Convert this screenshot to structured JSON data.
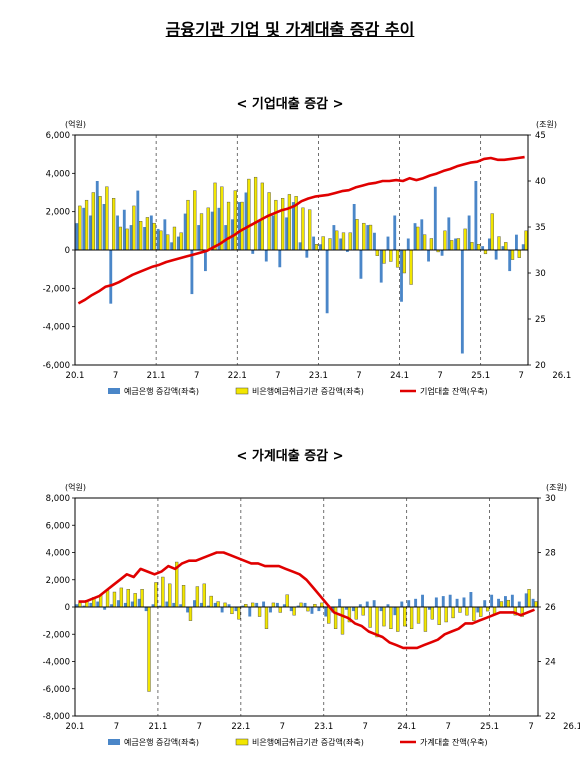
{
  "page_title": "금융기관 기업 및 가계대출 증감 추이",
  "chart_data": [
    {
      "type": "bar",
      "title": "< 기업대출 증감 >",
      "left_unit": "(억원)",
      "right_unit": "(조원)",
      "left_ylim": [
        -6000,
        6000
      ],
      "left_ticks": [
        "-6,000",
        "-4,000",
        "-2,000",
        "0",
        "2,000",
        "4,000",
        "6,000"
      ],
      "right_ylim": [
        20,
        45
      ],
      "right_ticks": [
        "20",
        "25",
        "30",
        "35",
        "40",
        "45"
      ],
      "x_tick_labels": [
        "20.1",
        "7",
        "21.1",
        "7",
        "22.1",
        "7",
        "23.1",
        "7",
        "24.1",
        "7",
        "25.1",
        "7",
        "26.1"
      ],
      "legend": [
        "예금은행 증감액(좌축)",
        "비은행예금취급기관 증감액(좌축)",
        "기업대출 잔액(우축)"
      ],
      "colors": {
        "bank": "#4a86c8",
        "nonbank": "#f2e600",
        "nonbank_edge": "#444444",
        "line": "#e00000"
      },
      "series": [
        {
          "name": "예금은행 증감액(좌축)",
          "values": [
            1400,
            2200,
            1800,
            3600,
            2400,
            -2800,
            1800,
            2100,
            1300,
            3100,
            1200,
            1800,
            1100,
            1600,
            400,
            700,
            1900,
            -2300,
            1300,
            -1100,
            2000,
            2200,
            1300,
            1600,
            2500,
            3000,
            -200,
            1500,
            -600,
            1800,
            -900,
            1700,
            2500,
            400,
            -400,
            700,
            300,
            -3300,
            1300,
            600,
            -100,
            2400,
            -1500,
            1300,
            900,
            -1700,
            700,
            1800,
            -2700,
            600,
            1400,
            1600,
            -600,
            3300,
            -300,
            1700,
            600,
            -5400,
            1800,
            3600,
            200,
            600,
            -500,
            200,
            -1100,
            800,
            300
          ]
        },
        {
          "name": "비은행예금취급기관 증감액(좌축)",
          "values": [
            2300,
            2600,
            3000,
            2800,
            3300,
            2700,
            1200,
            1100,
            2300,
            1500,
            1700,
            1400,
            1000,
            800,
            1200,
            900,
            2600,
            3100,
            1900,
            2200,
            3500,
            3300,
            2500,
            3100,
            2500,
            3700,
            3800,
            3500,
            3000,
            2600,
            2700,
            2900,
            2800,
            2200,
            2100,
            300,
            700,
            600,
            1000,
            900,
            900,
            1600,
            1400,
            1300,
            -300,
            -700,
            -600,
            -900,
            -1200,
            -1800,
            1200,
            800,
            600,
            -100,
            1000,
            500,
            600,
            1100,
            400,
            300,
            -200,
            1900,
            700,
            400,
            -500,
            -400,
            1000
          ]
        },
        {
          "name": "기업대출 잔액(우축)",
          "values": [
            26.7,
            27.1,
            27.6,
            28.0,
            28.5,
            28.7,
            29.0,
            29.4,
            29.8,
            30.1,
            30.4,
            30.7,
            30.9,
            31.2,
            31.4,
            31.6,
            31.8,
            32.0,
            32.2,
            32.4,
            32.8,
            33.2,
            33.7,
            34.1,
            34.6,
            35.0,
            35.4,
            35.8,
            36.2,
            36.5,
            36.8,
            37.0,
            37.3,
            37.8,
            38.1,
            38.3,
            38.4,
            38.5,
            38.7,
            38.9,
            39.0,
            39.3,
            39.5,
            39.7,
            39.8,
            40.0,
            40.0,
            40.1,
            40.0,
            40.3,
            40.1,
            40.3,
            40.6,
            40.8,
            41.1,
            41.3,
            41.6,
            41.8,
            42.0,
            42.1,
            42.4,
            42.5,
            42.3,
            42.3,
            42.4,
            42.5,
            42.6
          ]
        }
      ]
    },
    {
      "type": "bar",
      "title": "< 가계대출 증감 >",
      "left_unit": "(억원)",
      "right_unit": "(조원)",
      "left_ylim": [
        -8000,
        8000
      ],
      "left_ticks": [
        "-8,000",
        "-6,000",
        "-4,000",
        "-2,000",
        "0",
        "2,000",
        "4,000",
        "6,000",
        "8,000"
      ],
      "right_ylim": [
        22,
        30
      ],
      "right_ticks": [
        "22",
        "24",
        "26",
        "28",
        "30"
      ],
      "x_tick_labels": [
        "20.1",
        "7",
        "21.1",
        "7",
        "22.1",
        "7",
        "23.1",
        "7",
        "24.1",
        "7",
        "25.1",
        "7",
        "26.1"
      ],
      "legend": [
        "예금은행 증감액(좌축)",
        "비은행예금취급기관 증감액(좌축)",
        "가계대출 잔액(우축)"
      ],
      "colors": {
        "bank": "#4a86c8",
        "nonbank": "#f2e600",
        "nonbank_edge": "#444444",
        "line": "#e00000"
      },
      "series": [
        {
          "name": "예금은행 증감액(좌축)",
          "values": [
            200,
            100,
            300,
            400,
            -200,
            200,
            500,
            300,
            400,
            600,
            -300,
            200,
            100,
            400,
            300,
            200,
            -400,
            500,
            300,
            100,
            300,
            -400,
            200,
            -300,
            100,
            -700,
            300,
            400,
            -400,
            300,
            200,
            -300,
            100,
            300,
            -500,
            -300,
            -700,
            -400,
            600,
            -200,
            -300,
            200,
            400,
            500,
            -300,
            200,
            -600,
            400,
            500,
            600,
            900,
            -200,
            700,
            800,
            900,
            600,
            700,
            1100,
            -400,
            500,
            900,
            600,
            800,
            900,
            400,
            1000,
            600
          ]
        },
        {
          "name": "비은행예금취급기관 증감액(좌축)",
          "values": [
            300,
            500,
            700,
            900,
            1200,
            1100,
            1400,
            1300,
            1000,
            1300,
            -6200,
            1800,
            2200,
            1700,
            3300,
            1600,
            -1000,
            1500,
            1700,
            800,
            400,
            300,
            -500,
            -900,
            200,
            300,
            -700,
            -1600,
            300,
            -400,
            900,
            -600,
            300,
            -300,
            200,
            300,
            -1200,
            -1600,
            -2000,
            -1100,
            -900,
            -600,
            -1500,
            -2200,
            -1400,
            -1600,
            -1800,
            -1400,
            -1600,
            -1200,
            -1800,
            -900,
            -1300,
            -1100,
            -800,
            -400,
            -600,
            -1000,
            -700,
            -300,
            -500,
            400,
            500,
            -600,
            -700,
            1300,
            400
          ]
        },
        {
          "name": "가계대출 잔액(우축)",
          "values": [
            26.2,
            26.2,
            26.3,
            26.4,
            26.6,
            26.8,
            27.0,
            27.2,
            27.1,
            27.4,
            27.3,
            27.2,
            27.3,
            27.5,
            27.4,
            27.6,
            27.7,
            27.7,
            27.8,
            27.9,
            28.0,
            28.0,
            27.9,
            27.8,
            27.7,
            27.6,
            27.6,
            27.5,
            27.5,
            27.5,
            27.4,
            27.3,
            27.2,
            27.0,
            26.7,
            26.4,
            26.1,
            25.8,
            25.7,
            25.6,
            25.4,
            25.3,
            25.1,
            25.0,
            24.9,
            24.7,
            24.6,
            24.5,
            24.5,
            24.5,
            24.6,
            24.7,
            24.8,
            25.0,
            25.1,
            25.2,
            25.4,
            25.4,
            25.5,
            25.6,
            25.7,
            25.8,
            25.8,
            25.8,
            25.7,
            25.8,
            25.9
          ]
        }
      ]
    }
  ]
}
